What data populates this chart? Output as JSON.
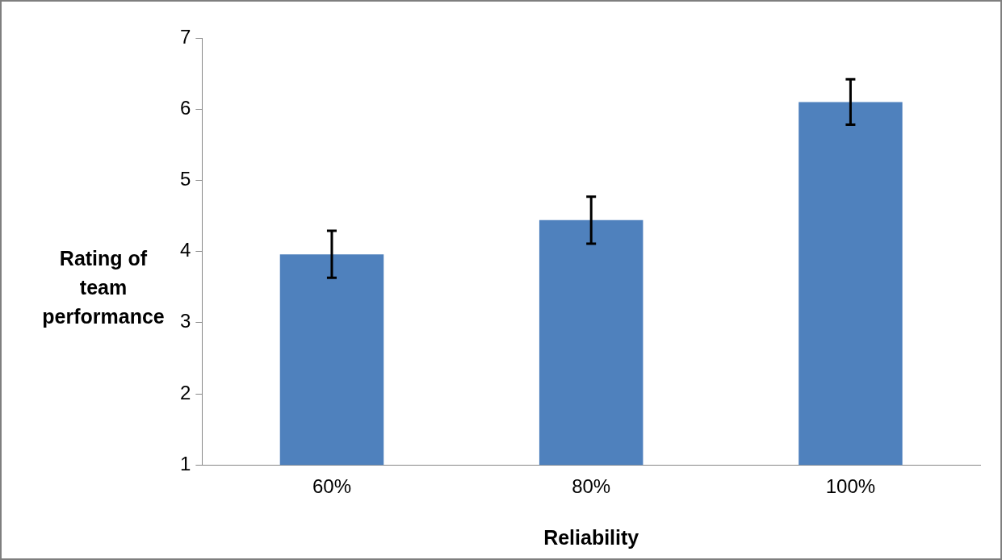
{
  "chart_data": {
    "type": "bar",
    "xlabel": "Reliability",
    "ylabel": "Rating of team performance",
    "categories": [
      "60%",
      "80%",
      "100%"
    ],
    "values": [
      3.96,
      4.44,
      6.1
    ],
    "errors": [
      0.33,
      0.33,
      0.32
    ],
    "color": "#4f81bd",
    "ylim": [
      1,
      7
    ],
    "yticks": [
      1,
      2,
      3,
      4,
      5,
      6,
      7
    ],
    "grid": false,
    "legend": false
  }
}
